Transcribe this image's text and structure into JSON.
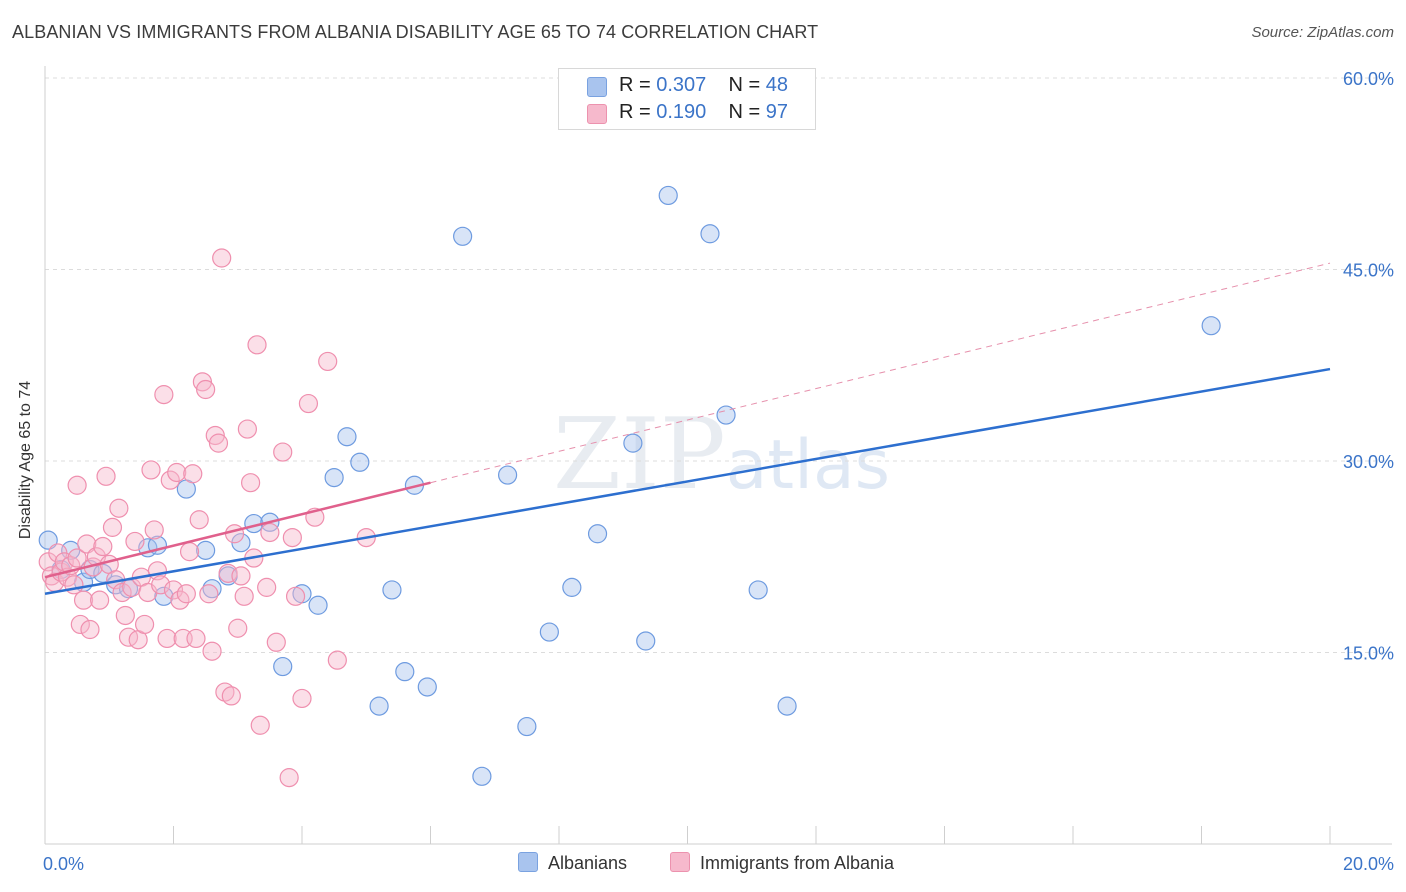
{
  "title": "ALBANIAN VS IMMIGRANTS FROM ALBANIA DISABILITY AGE 65 TO 74 CORRELATION CHART",
  "source": "Source: ZipAtlas.com",
  "watermark": {
    "zip": "ZIP",
    "atlas": "atlas"
  },
  "legend": {
    "rows": [
      {
        "r_label": "R = ",
        "r_value": "0.307",
        "n_label": "N = ",
        "n_value": "48",
        "color": "#a9c4ee"
      },
      {
        "r_label": "R = ",
        "r_value": "0.190",
        "n_label": "N = ",
        "n_value": "97",
        "color": "#f6b9cc"
      }
    ]
  },
  "chart_data": {
    "type": "scatter",
    "title": "ALBANIAN VS IMMIGRANTS FROM ALBANIA DISABILITY AGE 65 TO 74 CORRELATION CHART",
    "xlabel": "",
    "ylabel": "Disability Age 65 to 74",
    "xlim": [
      0,
      20
    ],
    "ylim": [
      0,
      60
    ],
    "x_tick_labels": [
      "0.0%",
      "20.0%"
    ],
    "y_ticks": [
      15,
      30,
      45,
      60
    ],
    "y_tick_labels": [
      "15.0%",
      "30.0%",
      "45.0%",
      "60.0%"
    ],
    "grid": true,
    "legend_position": "top-center",
    "series": [
      {
        "name": "Albanians",
        "color": "#6e9be0",
        "fill": "#a9c4ee",
        "r": 0.307,
        "n": 48,
        "trend": {
          "x": [
            0,
            20
          ],
          "y": [
            19.6,
            37.2
          ],
          "style": "solid",
          "color": "#2d6fcf"
        },
        "points": [
          [
            0.05,
            23.8
          ],
          [
            0.25,
            21.5
          ],
          [
            0.4,
            23.0
          ],
          [
            0.6,
            20.5
          ],
          [
            0.7,
            21.5
          ],
          [
            0.9,
            21.2
          ],
          [
            1.1,
            20.3
          ],
          [
            1.3,
            20.0
          ],
          [
            1.6,
            23.2
          ],
          [
            1.75,
            23.4
          ],
          [
            1.85,
            19.4
          ],
          [
            2.2,
            27.8
          ],
          [
            2.5,
            23.0
          ],
          [
            2.6,
            20.0
          ],
          [
            2.85,
            21.0
          ],
          [
            3.05,
            23.6
          ],
          [
            3.25,
            25.1
          ],
          [
            3.5,
            25.2
          ],
          [
            3.7,
            13.9
          ],
          [
            4.0,
            19.6
          ],
          [
            4.25,
            18.7
          ],
          [
            4.5,
            28.7
          ],
          [
            4.7,
            31.9
          ],
          [
            4.9,
            29.9
          ],
          [
            5.2,
            10.8
          ],
          [
            5.4,
            19.9
          ],
          [
            5.6,
            13.5
          ],
          [
            5.75,
            28.1
          ],
          [
            5.95,
            12.3
          ],
          [
            6.5,
            47.6
          ],
          [
            6.8,
            5.3
          ],
          [
            7.2,
            28.9
          ],
          [
            7.5,
            9.2
          ],
          [
            7.85,
            16.6
          ],
          [
            8.2,
            20.1
          ],
          [
            8.6,
            24.3
          ],
          [
            9.15,
            31.4
          ],
          [
            9.35,
            15.9
          ],
          [
            9.7,
            50.8
          ],
          [
            10.35,
            47.8
          ],
          [
            10.6,
            33.6
          ],
          [
            11.1,
            19.9
          ],
          [
            11.55,
            10.8
          ],
          [
            18.15,
            40.6
          ]
        ]
      },
      {
        "name": "Immigrants from Albania",
        "color": "#ef8fae",
        "fill": "#f6b9cc",
        "r": 0.19,
        "n": 97,
        "trend": {
          "x": [
            0,
            6
          ],
          "y": [
            20.9,
            28.3
          ],
          "style": "solid",
          "color": "#e0608c"
        },
        "trend_extended": {
          "x": [
            6,
            20
          ],
          "y": [
            28.3,
            45.5
          ],
          "style": "dashed",
          "color": "#e690ac"
        },
        "points": [
          [
            0.05,
            22.1
          ],
          [
            0.1,
            21.0
          ],
          [
            0.15,
            20.5
          ],
          [
            0.2,
            22.8
          ],
          [
            0.25,
            21.3
          ],
          [
            0.3,
            22.1
          ],
          [
            0.35,
            20.9
          ],
          [
            0.4,
            21.8
          ],
          [
            0.45,
            20.3
          ],
          [
            0.5,
            22.4
          ],
          [
            0.5,
            28.1
          ],
          [
            0.55,
            17.2
          ],
          [
            0.6,
            19.1
          ],
          [
            0.65,
            23.5
          ],
          [
            0.7,
            16.8
          ],
          [
            0.75,
            21.7
          ],
          [
            0.8,
            22.5
          ],
          [
            0.85,
            19.1
          ],
          [
            0.9,
            23.3
          ],
          [
            0.95,
            28.8
          ],
          [
            1.0,
            21.9
          ],
          [
            1.05,
            24.8
          ],
          [
            1.1,
            20.7
          ],
          [
            1.15,
            26.3
          ],
          [
            1.2,
            19.7
          ],
          [
            1.25,
            17.9
          ],
          [
            1.3,
            16.2
          ],
          [
            1.35,
            20.1
          ],
          [
            1.4,
            23.7
          ],
          [
            1.45,
            16.0
          ],
          [
            1.5,
            20.9
          ],
          [
            1.55,
            17.2
          ],
          [
            1.6,
            19.7
          ],
          [
            1.65,
            29.3
          ],
          [
            1.7,
            24.6
          ],
          [
            1.75,
            21.4
          ],
          [
            1.8,
            20.3
          ],
          [
            1.85,
            35.2
          ],
          [
            1.9,
            16.1
          ],
          [
            1.95,
            28.5
          ],
          [
            2.0,
            19.9
          ],
          [
            2.05,
            29.1
          ],
          [
            2.1,
            19.1
          ],
          [
            2.15,
            16.1
          ],
          [
            2.2,
            19.6
          ],
          [
            2.25,
            22.9
          ],
          [
            2.3,
            29.0
          ],
          [
            2.35,
            16.1
          ],
          [
            2.4,
            25.4
          ],
          [
            2.45,
            36.2
          ],
          [
            2.5,
            35.6
          ],
          [
            2.55,
            19.6
          ],
          [
            2.6,
            15.1
          ],
          [
            2.65,
            32.0
          ],
          [
            2.7,
            31.4
          ],
          [
            2.75,
            45.9
          ],
          [
            2.8,
            11.9
          ],
          [
            2.85,
            21.2
          ],
          [
            2.9,
            11.6
          ],
          [
            2.95,
            24.3
          ],
          [
            3.0,
            16.9
          ],
          [
            3.05,
            21.0
          ],
          [
            3.1,
            19.4
          ],
          [
            3.15,
            32.5
          ],
          [
            3.2,
            28.3
          ],
          [
            3.25,
            22.4
          ],
          [
            3.3,
            39.1
          ],
          [
            3.35,
            9.3
          ],
          [
            3.45,
            20.1
          ],
          [
            3.5,
            24.4
          ],
          [
            3.6,
            15.8
          ],
          [
            3.7,
            30.7
          ],
          [
            3.8,
            5.2
          ],
          [
            3.85,
            24.0
          ],
          [
            3.9,
            19.4
          ],
          [
            4.0,
            11.4
          ],
          [
            4.1,
            34.5
          ],
          [
            4.2,
            25.6
          ],
          [
            4.4,
            37.8
          ],
          [
            4.55,
            14.4
          ],
          [
            5.0,
            24.0
          ]
        ]
      }
    ]
  }
}
